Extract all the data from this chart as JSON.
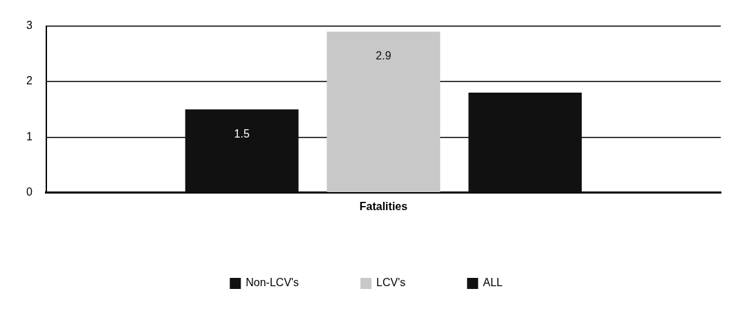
{
  "chart_data": {
    "type": "bar",
    "categories": [
      "Fatalities"
    ],
    "series": [
      {
        "name": "Non-LCV's",
        "color": "#111111",
        "values": [
          1.5
        ],
        "value_labels": [
          "1.5"
        ]
      },
      {
        "name": "LCV's",
        "color": "#c8c8c8",
        "values": [
          2.9
        ],
        "value_labels": [
          "2.9"
        ]
      },
      {
        "name": "ALL",
        "color": "#111111",
        "values": [
          1.8
        ],
        "value_labels": [
          null
        ]
      }
    ],
    "ylim": [
      0,
      3
    ],
    "yticks": [
      0,
      1,
      2,
      3
    ],
    "grid": "y",
    "legend": "bottom"
  }
}
